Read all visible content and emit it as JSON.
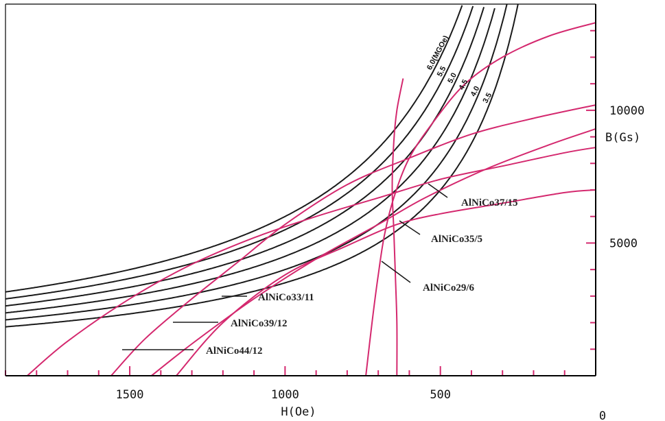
{
  "chart_data": {
    "type": "line",
    "xlabel": "H(Oe)",
    "ylabel": "B(Gs)",
    "x_reversed": true,
    "xlim": [
      1900,
      0
    ],
    "ylim": [
      0,
      14000
    ],
    "x_ticks": [
      {
        "value": 1500,
        "label": "1500"
      },
      {
        "value": 1000,
        "label": "1000"
      },
      {
        "value": 500,
        "label": "500"
      },
      {
        "value": 0,
        "label": "0"
      }
    ],
    "x_minor_step": 100,
    "y_ticks": [
      {
        "value": 10000,
        "label": "10000"
      },
      {
        "value": 5000,
        "label": "5000"
      }
    ],
    "y_minor_step": 1000,
    "colors": {
      "energy_curves": "#1a1a1a",
      "demag_curves": "#d4286e",
      "frame": "#000000"
    },
    "energy_product_curves": [
      {
        "label": "6.0(MGOe)",
        "bh": 6.0
      },
      {
        "label": "5.5",
        "bh": 5.5
      },
      {
        "label": "5.0",
        "bh": 5.0
      },
      {
        "label": "4.5",
        "bh": 4.5
      },
      {
        "label": "4.0",
        "bh": 4.0
      },
      {
        "label": "3.5",
        "bh": 3.5
      }
    ],
    "series": [
      {
        "name": "AlNiCo44/12",
        "points": [
          [
            1830,
            0
          ],
          [
            1700,
            1300
          ],
          [
            1500,
            2900
          ],
          [
            1300,
            4200
          ],
          [
            1100,
            5200
          ],
          [
            900,
            6000
          ],
          [
            700,
            6700
          ],
          [
            500,
            7400
          ],
          [
            300,
            7900
          ],
          [
            100,
            8400
          ],
          [
            0,
            8600
          ]
        ]
      },
      {
        "name": "AlNiCo39/12",
        "points": [
          [
            1560,
            0
          ],
          [
            1450,
            1400
          ],
          [
            1300,
            2900
          ],
          [
            1150,
            4300
          ],
          [
            1000,
            5700
          ],
          [
            800,
            7200
          ],
          [
            600,
            8200
          ],
          [
            400,
            9100
          ],
          [
            200,
            9700
          ],
          [
            0,
            10200
          ]
        ]
      },
      {
        "name": "AlNiCo33/11",
        "points": [
          [
            1430,
            0
          ],
          [
            1300,
            1200
          ],
          [
            1100,
            2900
          ],
          [
            900,
            4400
          ],
          [
            700,
            5700
          ],
          [
            550,
            6700
          ],
          [
            350,
            7800
          ],
          [
            150,
            8700
          ],
          [
            0,
            9300
          ]
        ]
      },
      {
        "name": "AlNiCo29/6",
        "points": [
          [
            740,
            0
          ],
          [
            720,
            2000
          ],
          [
            700,
            3800
          ],
          [
            680,
            5300
          ],
          [
            650,
            6700
          ],
          [
            600,
            8200
          ],
          [
            520,
            9600
          ],
          [
            420,
            11000
          ],
          [
            300,
            12000
          ],
          [
            150,
            12800
          ],
          [
            0,
            13300
          ]
        ]
      },
      {
        "name": "AlNiCo35/5",
        "points": [
          [
            640,
            0
          ],
          [
            640,
            2000
          ],
          [
            645,
            3800
          ],
          [
            650,
            5500
          ],
          [
            655,
            7100
          ],
          [
            650,
            8800
          ],
          [
            640,
            10000
          ],
          [
            620,
            11200
          ]
        ]
      },
      {
        "name": "AlNiCo37/15",
        "points": [
          [
            1350,
            0
          ],
          [
            1200,
            2000
          ],
          [
            1000,
            3800
          ],
          [
            800,
            4900
          ],
          [
            640,
            5700
          ],
          [
            500,
            6100
          ],
          [
            300,
            6500
          ],
          [
            100,
            6900
          ],
          [
            0,
            7000
          ]
        ]
      }
    ]
  }
}
